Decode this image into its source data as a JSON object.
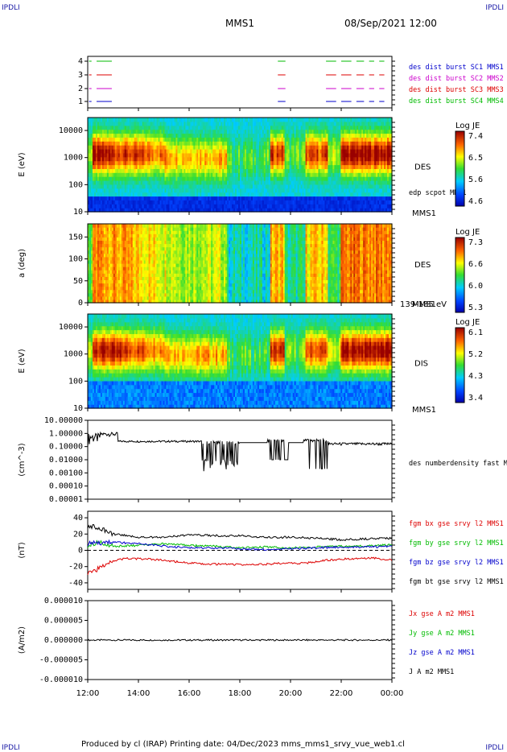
{
  "header": {
    "corner_tl": "IPDLI",
    "corner_tr": "IPDLI",
    "corner_bl": "IPDLI",
    "corner_br": "IPDLI",
    "title": "MMS1",
    "datetime": "08/Sep/2021 12:00"
  },
  "footer": {
    "text": "Produced by cl (IRAP)    Printing date: 04/Dec/2023    mms_mms1_srvy_vue_web1.cl"
  },
  "chart_data": [
    {
      "type": "scatter",
      "id": "burst",
      "yticks": [
        "4",
        "3",
        "2",
        "1"
      ],
      "legend": [
        {
          "name": "des dist burst SC1 MMS1",
          "color": "#0000cc"
        },
        {
          "name": "des dist burst SC2 MMS2",
          "color": "#cc00cc"
        },
        {
          "name": "des dist burst SC3 MMS3",
          "color": "#dd0000"
        },
        {
          "name": "des dist burst SC4 MMS4",
          "color": "#00bb00"
        }
      ],
      "segments_hours": [
        [
          12.05,
          12.15
        ],
        [
          12.35,
          12.95
        ],
        [
          19.5,
          19.8
        ],
        [
          21.4,
          21.8
        ],
        [
          22.0,
          22.4
        ],
        [
          22.6,
          22.9
        ],
        [
          23.1,
          23.3
        ],
        [
          23.5,
          23.7
        ]
      ]
    },
    {
      "type": "heatmap",
      "id": "des-energy",
      "ylabel": "E (eV)",
      "yticks": [
        "10000",
        "1000",
        "100",
        "10"
      ],
      "ylog": [
        10,
        30000
      ],
      "right_label": "DES",
      "right_sub": "edp scpot MMS1",
      "right_bottom": "MMS1",
      "colorbar": {
        "title": "Log JE",
        "ticks": [
          "7.4",
          "6.5",
          "5.6",
          "4.6"
        ]
      }
    },
    {
      "type": "heatmap",
      "id": "des-pitch",
      "ylabel": "a (deg)",
      "yticks": [
        "150",
        "100",
        "50",
        "0"
      ],
      "ylim": [
        0,
        180
      ],
      "right_label": "DES",
      "right_bottom": "MMS1",
      "right_extra": "139-185 eV",
      "colorbar": {
        "title": "Log JE",
        "ticks": [
          "7.3",
          "6.6",
          "6.0",
          "5.3"
        ]
      }
    },
    {
      "type": "heatmap",
      "id": "dis-energy",
      "ylabel": "E (eV)",
      "yticks": [
        "10000",
        "1000",
        "100",
        "10"
      ],
      "ylog": [
        10,
        30000
      ],
      "right_label": "DIS",
      "right_bottom": "MMS1",
      "colorbar": {
        "title": "Log JE",
        "ticks": [
          "6.1",
          "5.2",
          "4.3",
          "3.4"
        ]
      }
    },
    {
      "type": "line",
      "id": "density",
      "ylabel": "(cm^-3)",
      "ylog": [
        0.0001,
        10
      ],
      "yticks": [
        "10.00000",
        "1.00000",
        "0.10000",
        "0.01000",
        "0.00100",
        "0.00010",
        "0.00001"
      ],
      "series": [
        {
          "name": "des numberdensity fast M",
          "color": "#000000"
        }
      ]
    },
    {
      "type": "line",
      "id": "bfield",
      "ylabel": "(nT)",
      "ylim": [
        -48,
        48
      ],
      "yticks": [
        "40",
        "20",
        "0",
        "-20",
        "-40"
      ],
      "series": [
        {
          "name": "fgm bx gse srvy l2 MMS1",
          "color": "#dd0000",
          "values": [
            [
              12.0,
              -27
            ],
            [
              12.5,
              -22
            ],
            [
              12.8,
              -14
            ],
            [
              13.5,
              -10
            ],
            [
              14.5,
              -11
            ],
            [
              15.5,
              -14
            ],
            [
              16.5,
              -17
            ],
            [
              17.5,
              -17
            ],
            [
              18.5,
              -18
            ],
            [
              19.5,
              -16
            ],
            [
              20.5,
              -16
            ],
            [
              21.5,
              -12
            ],
            [
              22.5,
              -10
            ],
            [
              23.2,
              -9
            ],
            [
              24.0,
              -12
            ]
          ]
        },
        {
          "name": "fgm by gse srvy l2 MMS1",
          "color": "#00bb00",
          "values": [
            [
              12.0,
              6
            ],
            [
              12.5,
              10
            ],
            [
              13.0,
              5
            ],
            [
              14.0,
              6
            ],
            [
              15.0,
              8
            ],
            [
              16.0,
              6
            ],
            [
              17.0,
              5
            ],
            [
              18.0,
              3
            ],
            [
              19.0,
              4
            ],
            [
              20.0,
              3
            ],
            [
              21.0,
              4
            ],
            [
              22.0,
              5
            ],
            [
              23.0,
              5
            ],
            [
              24.0,
              7
            ]
          ]
        },
        {
          "name": "fgm bz gse srvy l2 MMS1",
          "color": "#0000cc",
          "values": [
            [
              12.0,
              8
            ],
            [
              12.5,
              9
            ],
            [
              13.0,
              10
            ],
            [
              14.0,
              8
            ],
            [
              15.0,
              5
            ],
            [
              16.0,
              3
            ],
            [
              17.0,
              3
            ],
            [
              18.0,
              2
            ],
            [
              19.0,
              1
            ],
            [
              20.0,
              2
            ],
            [
              21.0,
              3
            ],
            [
              22.0,
              4
            ],
            [
              23.0,
              4
            ],
            [
              24.0,
              5
            ]
          ]
        },
        {
          "name": "fgm bt gse srvy l2 MMS1",
          "color": "#000000",
          "values": [
            [
              12.0,
              30
            ],
            [
              12.5,
              27
            ],
            [
              13.0,
              20
            ],
            [
              14.0,
              16
            ],
            [
              15.0,
              16
            ],
            [
              16.0,
              19
            ],
            [
              17.0,
              18
            ],
            [
              18.0,
              18
            ],
            [
              19.0,
              16
            ],
            [
              20.0,
              16
            ],
            [
              21.0,
              15
            ],
            [
              22.0,
              13
            ],
            [
              23.0,
              14
            ],
            [
              24.0,
              15
            ]
          ]
        }
      ]
    },
    {
      "type": "line",
      "id": "current",
      "ylabel": "(A/m2)",
      "ylim": [
        -1e-05,
        1e-05
      ],
      "yticks": [
        "0.000010",
        "0.000005",
        "0.000000",
        "-0.000005",
        "-0.000010"
      ],
      "series": [
        {
          "name": "Jx gse A m2 MMS1",
          "color": "#dd0000"
        },
        {
          "name": "Jy gse A m2 MMS1",
          "color": "#00bb00"
        },
        {
          "name": "Jz gse A m2 MMS1",
          "color": "#0000cc"
        },
        {
          "name": "J A m2 MMS1",
          "color": "#000000"
        }
      ]
    }
  ],
  "time_axis": {
    "hours": [
      12,
      14,
      16,
      18,
      20,
      22,
      24
    ],
    "labels": [
      "12:00",
      "14:00",
      "16:00",
      "18:00",
      "20:00",
      "22:00",
      "00:00"
    ]
  }
}
